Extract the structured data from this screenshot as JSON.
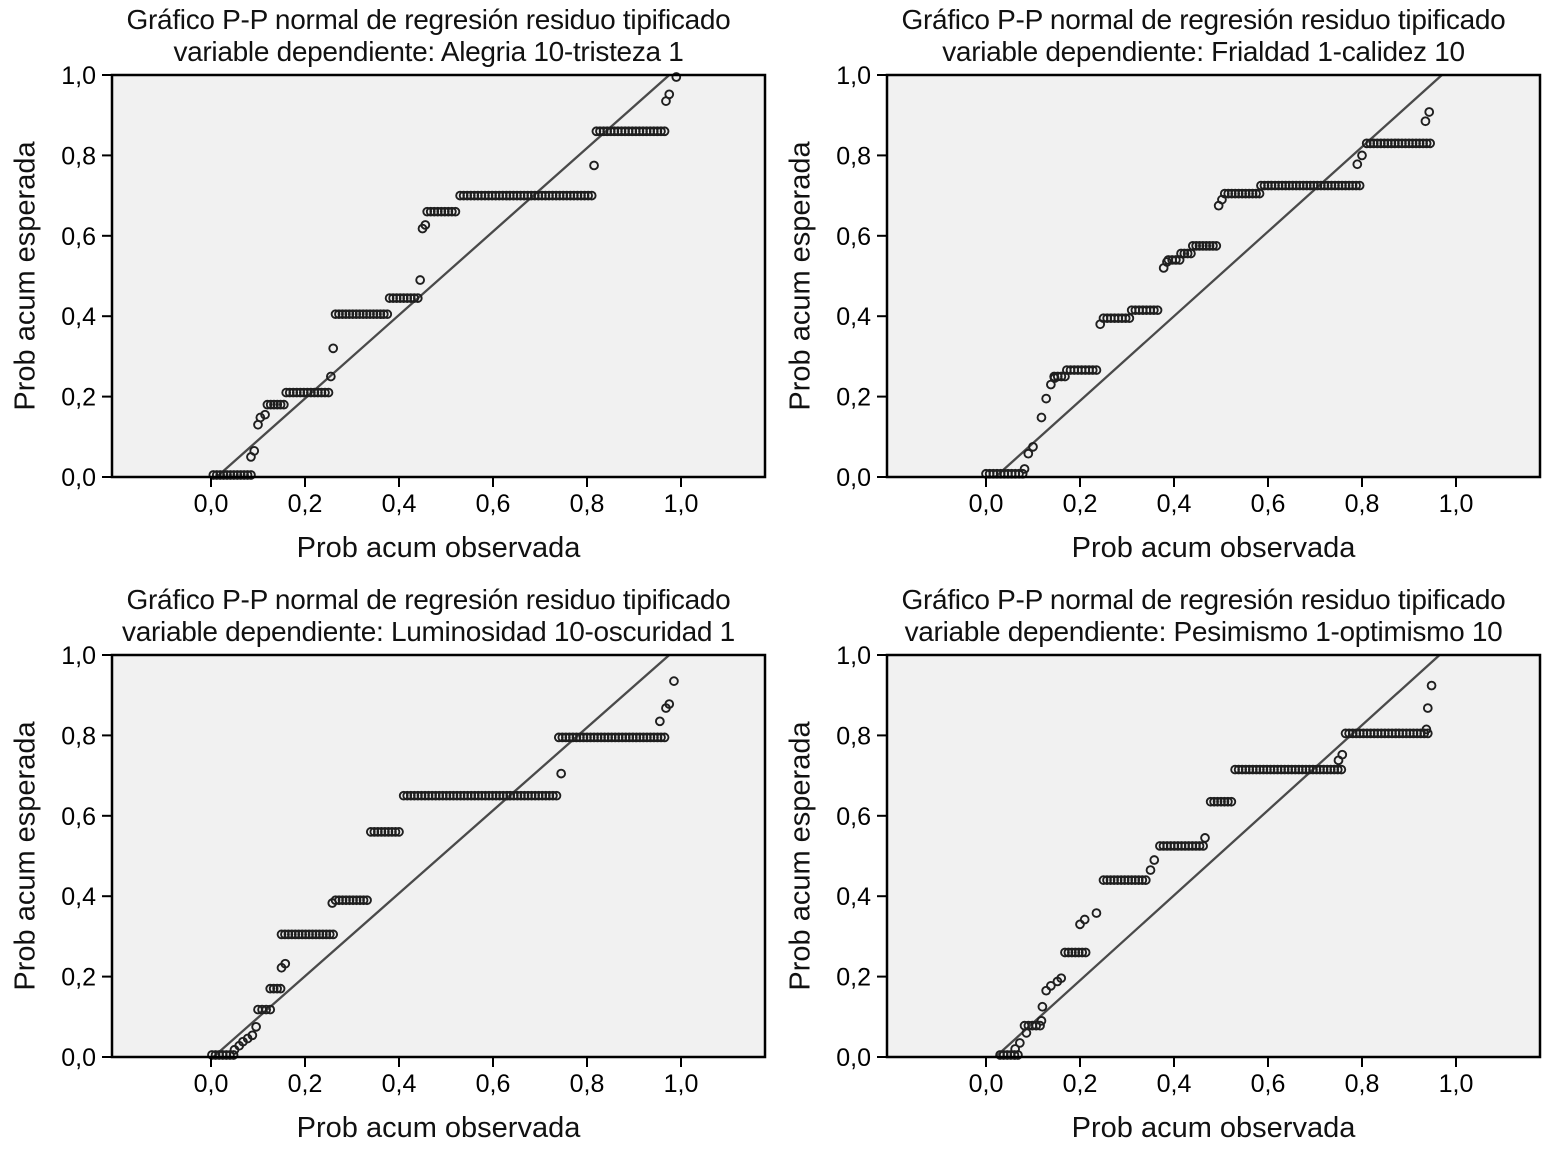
{
  "figure": {
    "background": "#ffffff",
    "description": "Four SPSS normal P-P plots of regression standardized residuals"
  },
  "style": {
    "plot_bg": "#f1f1f1",
    "box_border_color": "#000000",
    "point_color": "#1f1f1f",
    "ref_line_color": "#4a4a4a",
    "text_color": "#111111"
  },
  "chart_data": [
    {
      "type": "scatter",
      "title_line1": "Gráfico P-P normal de regresión residuo tipificado",
      "title_line2": "variable dependiente: Alegria 10-tristeza 1",
      "xlabel": "Prob acum observada",
      "ylabel": "Prob acum esperada",
      "xlim": [
        0,
        1
      ],
      "ylim": [
        0,
        1
      ],
      "grid": false,
      "legend": null,
      "xticks": [
        0,
        0.2,
        0.4,
        0.6,
        0.8,
        1.0
      ],
      "yticks": [
        0,
        0.2,
        0.4,
        0.6,
        0.8,
        1.0
      ],
      "xtick_labels": [
        "0,0",
        "0,2",
        "0,4",
        "0,6",
        "0,8",
        "1,0"
      ],
      "ytick_labels": [
        "0,0",
        "0,2",
        "0,4",
        "0,6",
        "0,8",
        "1,0"
      ],
      "ref_line": {
        "from": [
          0.012,
          0
        ],
        "to": [
          0.975,
          1
        ]
      },
      "point_runs": [
        [
          0.005,
          0.085,
          0.005
        ],
        [
          0.12,
          0.155,
          0.18
        ],
        [
          0.16,
          0.25,
          0.21
        ],
        [
          0.265,
          0.375,
          0.405
        ],
        [
          0.38,
          0.44,
          0.445
        ],
        [
          0.46,
          0.52,
          0.66
        ],
        [
          0.53,
          0.81,
          0.7
        ],
        [
          0.82,
          0.965,
          0.86
        ]
      ],
      "points": [
        [
          0.085,
          0.05
        ],
        [
          0.092,
          0.065
        ],
        [
          0.1,
          0.13
        ],
        [
          0.105,
          0.148
        ],
        [
          0.115,
          0.155
        ],
        [
          0.255,
          0.25
        ],
        [
          0.26,
          0.32
        ],
        [
          0.445,
          0.49
        ],
        [
          0.45,
          0.618
        ],
        [
          0.456,
          0.627
        ],
        [
          0.815,
          0.775
        ],
        [
          0.968,
          0.935
        ],
        [
          0.975,
          0.952
        ],
        [
          0.99,
          0.995
        ]
      ]
    },
    {
      "type": "scatter",
      "title_line1": "Gráfico P-P normal de regresión residuo tipificado",
      "title_line2": "variable dependiente: Frialdad 1-calidez 10",
      "xlabel": "Prob acum observada",
      "ylabel": "Prob acum esperada",
      "xlim": [
        0,
        1
      ],
      "ylim": [
        0,
        1
      ],
      "grid": false,
      "legend": null,
      "xticks": [
        0,
        0.2,
        0.4,
        0.6,
        0.8,
        1.0
      ],
      "yticks": [
        0,
        0.2,
        0.4,
        0.6,
        0.8,
        1.0
      ],
      "xtick_labels": [
        "0,0",
        "0,2",
        "0,4",
        "0,6",
        "0,8",
        "1,0"
      ],
      "ytick_labels": [
        "0,0",
        "0,2",
        "0,4",
        "0,6",
        "0,8",
        "1,0"
      ],
      "ref_line": {
        "from": [
          0.02,
          0
        ],
        "to": [
          0.97,
          1
        ]
      },
      "point_runs": [
        [
          0.0,
          0.078,
          0.008
        ],
        [
          0.145,
          0.168,
          0.25
        ],
        [
          0.172,
          0.235,
          0.266
        ],
        [
          0.25,
          0.305,
          0.395
        ],
        [
          0.31,
          0.365,
          0.415
        ],
        [
          0.388,
          0.412,
          0.54
        ],
        [
          0.415,
          0.436,
          0.556
        ],
        [
          0.44,
          0.49,
          0.575
        ],
        [
          0.508,
          0.582,
          0.705
        ],
        [
          0.585,
          0.795,
          0.725
        ],
        [
          0.81,
          0.945,
          0.83
        ]
      ],
      "points": [
        [
          0.082,
          0.02
        ],
        [
          0.09,
          0.058
        ],
        [
          0.1,
          0.075
        ],
        [
          0.118,
          0.148
        ],
        [
          0.128,
          0.195
        ],
        [
          0.138,
          0.23
        ],
        [
          0.146,
          0.246
        ],
        [
          0.243,
          0.38
        ],
        [
          0.378,
          0.52
        ],
        [
          0.385,
          0.535
        ],
        [
          0.495,
          0.675
        ],
        [
          0.502,
          0.69
        ],
        [
          0.79,
          0.778
        ],
        [
          0.8,
          0.8
        ],
        [
          0.935,
          0.885
        ],
        [
          0.943,
          0.908
        ]
      ]
    },
    {
      "type": "scatter",
      "title_line1": "Gráfico P-P normal de regresión residuo tipificado",
      "title_line2": "variable dependiente: Luminosidad 10-oscuridad 1",
      "xlabel": "Prob acum observada",
      "ylabel": "Prob acum esperada",
      "xlim": [
        0,
        1
      ],
      "ylim": [
        0,
        1
      ],
      "grid": false,
      "legend": null,
      "xticks": [
        0,
        0.2,
        0.4,
        0.6,
        0.8,
        1.0
      ],
      "yticks": [
        0,
        0.2,
        0.4,
        0.6,
        0.8,
        1.0
      ],
      "xtick_labels": [
        "0,0",
        "0,2",
        "0,4",
        "0,6",
        "0,8",
        "1,0"
      ],
      "ytick_labels": [
        "0,0",
        "0,2",
        "0,4",
        "0,6",
        "0,8",
        "1,0"
      ],
      "ref_line": {
        "from": [
          0.005,
          0
        ],
        "to": [
          0.975,
          1
        ]
      },
      "point_runs": [
        [
          0.002,
          0.048,
          0.005
        ],
        [
          0.1,
          0.126,
          0.118
        ],
        [
          0.126,
          0.148,
          0.17
        ],
        [
          0.15,
          0.26,
          0.305
        ],
        [
          0.265,
          0.332,
          0.39
        ],
        [
          0.34,
          0.4,
          0.56
        ],
        [
          0.41,
          0.735,
          0.65
        ],
        [
          0.74,
          0.965,
          0.795
        ]
      ],
      "points": [
        [
          0.05,
          0.018
        ],
        [
          0.06,
          0.028
        ],
        [
          0.068,
          0.038
        ],
        [
          0.078,
          0.046
        ],
        [
          0.088,
          0.054
        ],
        [
          0.096,
          0.075
        ],
        [
          0.15,
          0.222
        ],
        [
          0.158,
          0.232
        ],
        [
          0.258,
          0.383
        ],
        [
          0.745,
          0.705
        ],
        [
          0.955,
          0.835
        ],
        [
          0.968,
          0.868
        ],
        [
          0.975,
          0.878
        ],
        [
          0.985,
          0.935
        ]
      ]
    },
    {
      "type": "scatter",
      "title_line1": "Gráfico P-P normal de regresión residuo tipificado",
      "title_line2": "variable dependiente: Pesimismo 1-optimismo 10",
      "xlabel": "Prob acum observada",
      "ylabel": "Prob acum esperada",
      "xlim": [
        0,
        1
      ],
      "ylim": [
        0,
        1
      ],
      "grid": false,
      "legend": null,
      "xticks": [
        0,
        0.2,
        0.4,
        0.6,
        0.8,
        1.0
      ],
      "yticks": [
        0,
        0.2,
        0.4,
        0.6,
        0.8,
        1.0
      ],
      "xtick_labels": [
        "0,0",
        "0,2",
        "0,4",
        "0,6",
        "0,8",
        "1,0"
      ],
      "ytick_labels": [
        "0,0",
        "0,2",
        "0,4",
        "0,6",
        "0,8",
        "1,0"
      ],
      "ref_line": {
        "from": [
          0.02,
          0
        ],
        "to": [
          0.965,
          1
        ]
      },
      "point_runs": [
        [
          0.03,
          0.068,
          0.005
        ],
        [
          0.082,
          0.115,
          0.078
        ],
        [
          0.168,
          0.212,
          0.26
        ],
        [
          0.25,
          0.34,
          0.44
        ],
        [
          0.37,
          0.462,
          0.525
        ],
        [
          0.478,
          0.522,
          0.635
        ],
        [
          0.53,
          0.756,
          0.715
        ],
        [
          0.765,
          0.94,
          0.805
        ]
      ],
      "points": [
        [
          0.062,
          0.02
        ],
        [
          0.072,
          0.035
        ],
        [
          0.086,
          0.06
        ],
        [
          0.118,
          0.09
        ],
        [
          0.12,
          0.125
        ],
        [
          0.128,
          0.165
        ],
        [
          0.138,
          0.177
        ],
        [
          0.152,
          0.188
        ],
        [
          0.16,
          0.196
        ],
        [
          0.2,
          0.33
        ],
        [
          0.21,
          0.342
        ],
        [
          0.235,
          0.358
        ],
        [
          0.35,
          0.465
        ],
        [
          0.358,
          0.49
        ],
        [
          0.466,
          0.545
        ],
        [
          0.75,
          0.738
        ],
        [
          0.758,
          0.752
        ],
        [
          0.937,
          0.815
        ],
        [
          0.94,
          0.868
        ],
        [
          0.948,
          0.924
        ]
      ]
    }
  ]
}
